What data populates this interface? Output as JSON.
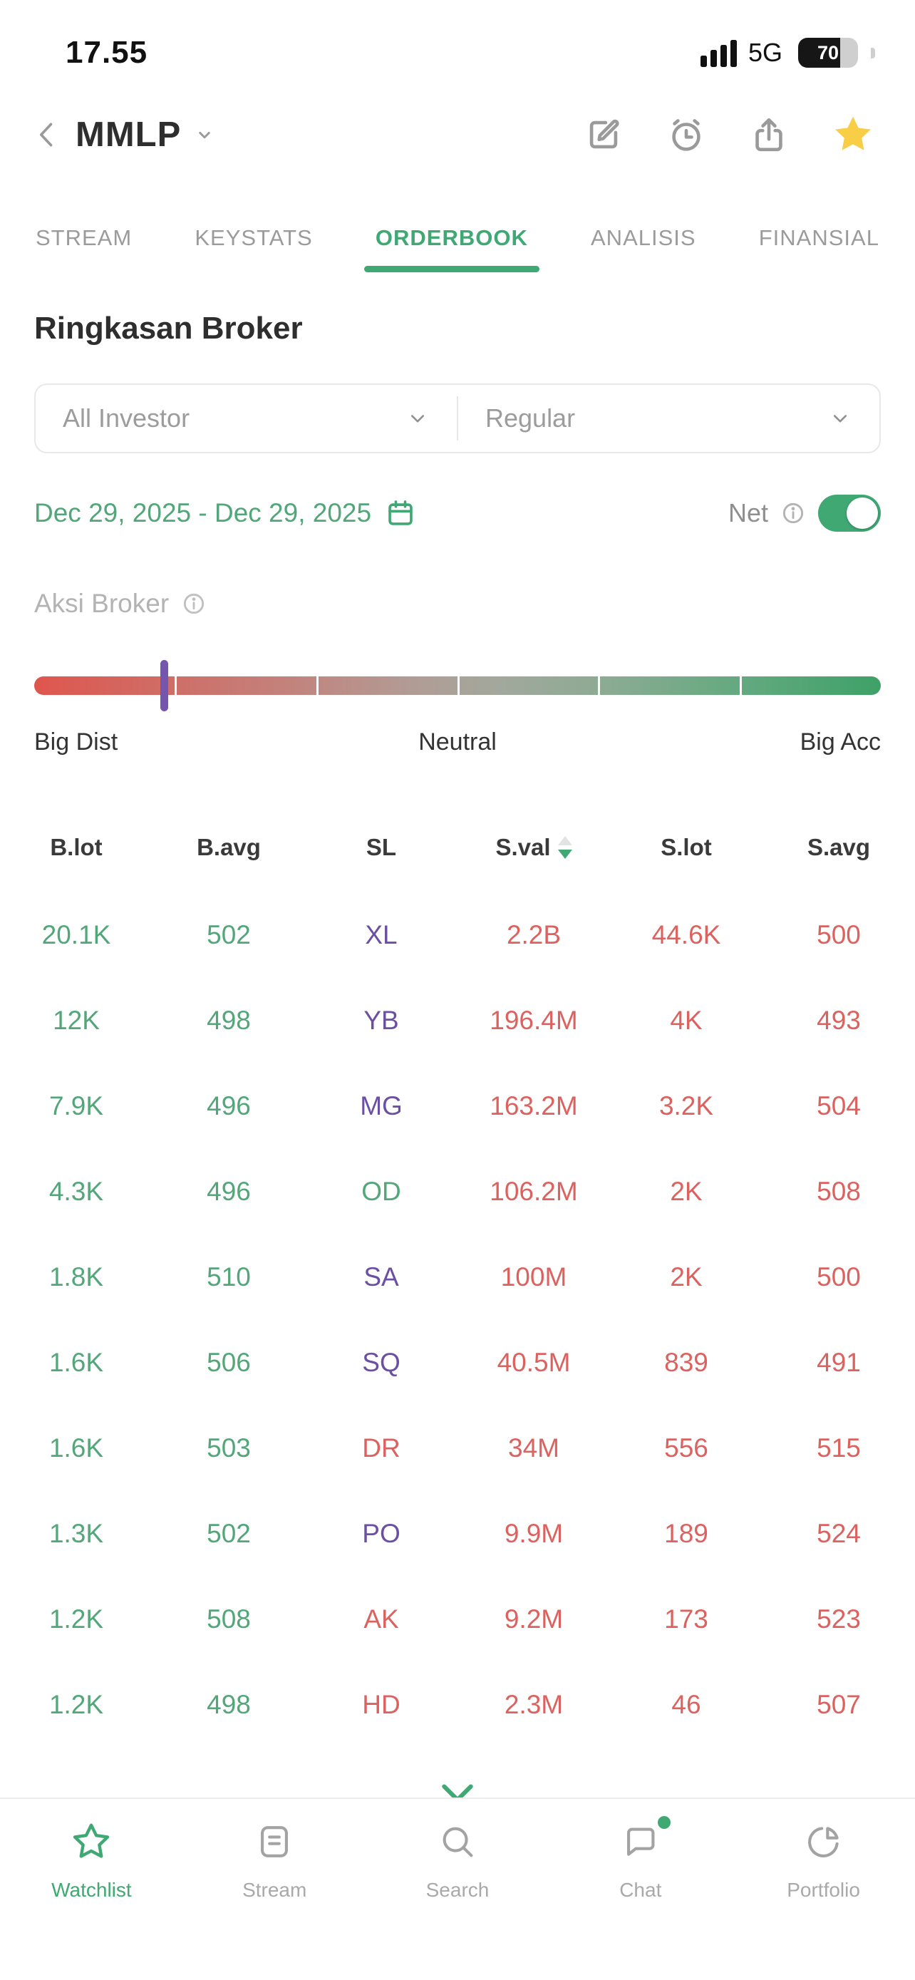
{
  "status_bar": {
    "time": "17.55",
    "network": "5G",
    "battery_percent": "70"
  },
  "header": {
    "symbol": "MMLP",
    "icons": [
      "back-icon",
      "symbol-dropdown-icon",
      "edit-icon",
      "alarm-icon",
      "share-icon",
      "favorite-star-icon"
    ]
  },
  "tabs": [
    {
      "label": "STREAM",
      "active": false
    },
    {
      "label": "KEYSTATS",
      "active": false
    },
    {
      "label": "ORDERBOOK",
      "active": true
    },
    {
      "label": "ANALISIS",
      "active": false
    },
    {
      "label": "FINANSIAL",
      "active": false
    }
  ],
  "page": {
    "title": "Ringkasan Broker"
  },
  "filters": {
    "investor": "All Investor",
    "market": "Regular"
  },
  "date_filter": {
    "range": "Dec 29, 2025 - Dec 29, 2025",
    "icon": "calendar-icon"
  },
  "net_toggle": {
    "label": "Net",
    "on": true,
    "icon": "info-icon"
  },
  "aksi_broker": {
    "label": "Aksi Broker",
    "icon": "info-icon",
    "marker_percent": 15.3,
    "scale": {
      "left": "Big Dist",
      "center": "Neutral",
      "right": "Big Acc"
    }
  },
  "table": {
    "columns": [
      "B.lot",
      "B.avg",
      "SL",
      "S.val",
      "S.lot",
      "S.avg"
    ],
    "sort": {
      "column": "S.val",
      "direction": "desc"
    },
    "rows": [
      {
        "b_lot": "20.1K",
        "b_avg": "502",
        "sl": "XL",
        "sl_color": "purple",
        "s_val": "2.2B",
        "s_lot": "44.6K",
        "s_avg": "500"
      },
      {
        "b_lot": "12K",
        "b_avg": "498",
        "sl": "YB",
        "sl_color": "purple",
        "s_val": "196.4M",
        "s_lot": "4K",
        "s_avg": "493"
      },
      {
        "b_lot": "7.9K",
        "b_avg": "496",
        "sl": "MG",
        "sl_color": "purple",
        "s_val": "163.2M",
        "s_lot": "3.2K",
        "s_avg": "504"
      },
      {
        "b_lot": "4.3K",
        "b_avg": "496",
        "sl": "OD",
        "sl_color": "green",
        "s_val": "106.2M",
        "s_lot": "2K",
        "s_avg": "508"
      },
      {
        "b_lot": "1.8K",
        "b_avg": "510",
        "sl": "SA",
        "sl_color": "purple",
        "s_val": "100M",
        "s_lot": "2K",
        "s_avg": "500"
      },
      {
        "b_lot": "1.6K",
        "b_avg": "506",
        "sl": "SQ",
        "sl_color": "purple",
        "s_val": "40.5M",
        "s_lot": "839",
        "s_avg": "491"
      },
      {
        "b_lot": "1.6K",
        "b_avg": "503",
        "sl": "DR",
        "sl_color": "red",
        "s_val": "34M",
        "s_lot": "556",
        "s_avg": "515"
      },
      {
        "b_lot": "1.3K",
        "b_avg": "502",
        "sl": "PO",
        "sl_color": "purple",
        "s_val": "9.9M",
        "s_lot": "189",
        "s_avg": "524"
      },
      {
        "b_lot": "1.2K",
        "b_avg": "508",
        "sl": "AK",
        "sl_color": "red",
        "s_val": "9.2M",
        "s_lot": "173",
        "s_avg": "523"
      },
      {
        "b_lot": "1.2K",
        "b_avg": "498",
        "sl": "HD",
        "sl_color": "red",
        "s_val": "2.3M",
        "s_lot": "46",
        "s_avg": "507"
      }
    ]
  },
  "bottom_nav": [
    {
      "label": "Watchlist",
      "icon": "star-icon",
      "active": true,
      "badge": false
    },
    {
      "label": "Stream",
      "icon": "stream-icon",
      "active": false,
      "badge": false
    },
    {
      "label": "Search",
      "icon": "search-icon",
      "active": false,
      "badge": false
    },
    {
      "label": "Chat",
      "icon": "chat-icon",
      "active": false,
      "badge": true
    },
    {
      "label": "Portfolio",
      "icon": "portfolio-icon",
      "active": false,
      "badge": false
    }
  ],
  "colors": {
    "accent_green": "#3fa873",
    "text_green": "#53a679",
    "text_red": "#dc625f",
    "text_purple": "#6b4fa3",
    "marker_purple": "#7456ae",
    "star_yellow": "#f7ce46",
    "gradient_left_red": "#df564e",
    "gradient_right_green": "#3ea167"
  }
}
